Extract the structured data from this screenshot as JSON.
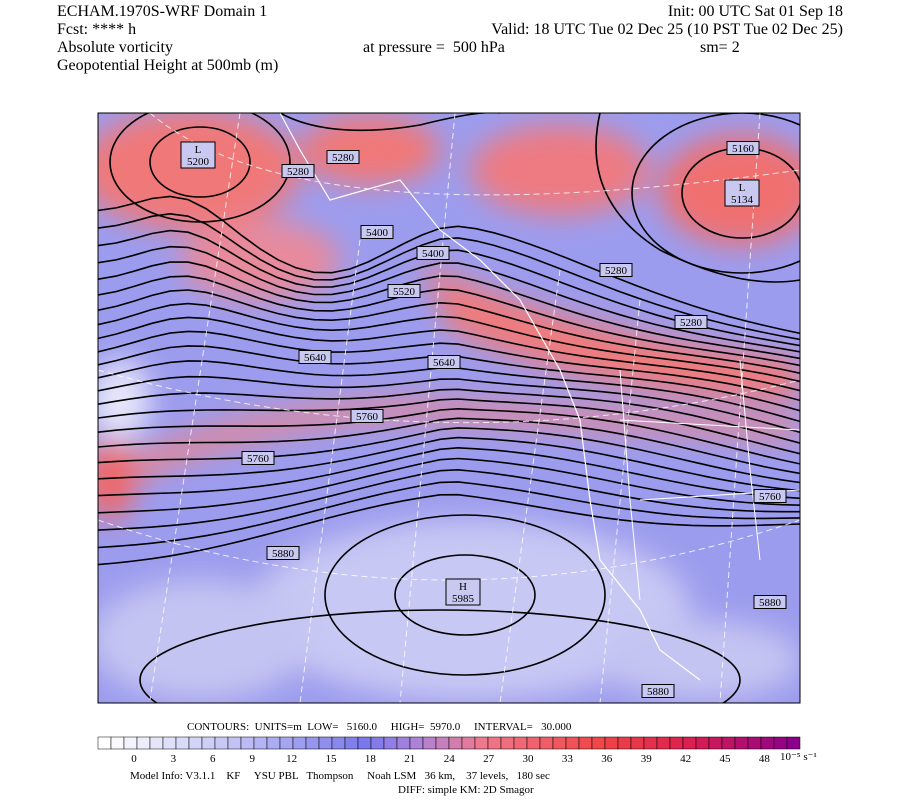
{
  "header": {
    "model": "ECHAM.1970S-WRF Domain 1",
    "forecast": "Fcst: **** h",
    "field": "Absolute vorticity",
    "contour_field": "Geopotential Height at 500mb (m)",
    "init": "Init: 00 UTC Sat 01 Sep 18",
    "valid": "Valid: 18 UTC Tue 02 Dec 25 (10 PST Tue 02 Dec 25)",
    "pressure": "at pressure =  500 hPa",
    "smoothing": "sm= 2"
  },
  "map": {
    "lows": [
      {
        "symbol": "L",
        "value": "5200"
      },
      {
        "symbol": "L",
        "value": "5134"
      }
    ],
    "highs": [
      {
        "symbol": "H",
        "value": "5985"
      }
    ],
    "contour_labels": [
      "5280",
      "5280",
      "5400",
      "5400",
      "5520",
      "5640",
      "5640",
      "5760",
      "5760",
      "5760",
      "5880",
      "5880",
      "5880",
      "5160",
      "5280",
      "5280"
    ]
  },
  "colorbar": {
    "ticks": [
      "0",
      "3",
      "6",
      "9",
      "12",
      "15",
      "18",
      "21",
      "24",
      "27",
      "30",
      "33",
      "36",
      "39",
      "42",
      "45",
      "48"
    ],
    "unit": "10⁻⁵ s⁻¹"
  },
  "footer": {
    "contours": "CONTOURS:  UNITS=m  LOW=   5160.0     HIGH=  5970.0     INTERVAL=   30.000",
    "model_info": "Model Info: V3.1.1    KF     YSU PBL   Thompson     Noah LSM   36 km,    37 levels,   180 sec",
    "diff": "DIFF: simple KM: 2D Smagor"
  }
}
